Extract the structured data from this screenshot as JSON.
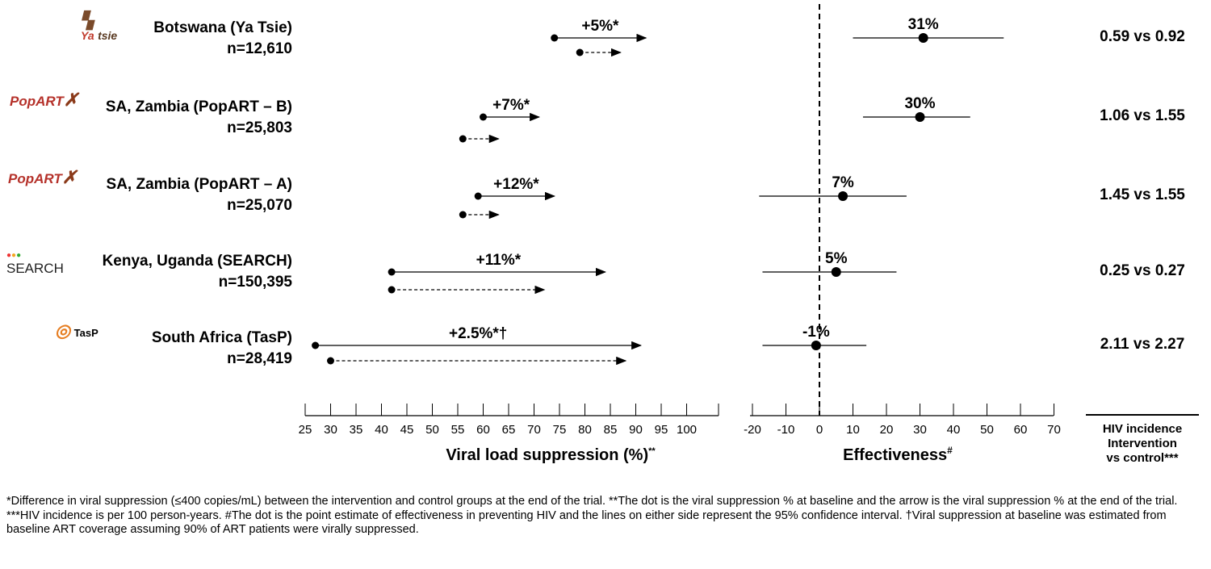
{
  "chart_data": {
    "type": "forest",
    "studies": [
      {
        "name": "Botswana (Ya Tsie)",
        "n": "n=12,610",
        "logo": "Ya tsie",
        "diff_label": "+5%*",
        "intervention": {
          "baseline": 74,
          "end": 92
        },
        "control": {
          "baseline": 79,
          "end": 87
        },
        "effectiveness": {
          "label": "31%",
          "point": 31,
          "ci": [
            10,
            55
          ]
        },
        "incidence": "0.59 vs 0.92"
      },
      {
        "name": "SA, Zambia (PopART – B)",
        "n": "n=25,803",
        "logo": "PopART",
        "diff_label": "+7%*",
        "intervention": {
          "baseline": 60,
          "end": 71
        },
        "control": {
          "baseline": 56,
          "end": 63
        },
        "effectiveness": {
          "label": "30%",
          "point": 30,
          "ci": [
            13,
            45
          ]
        },
        "incidence": "1.06 vs 1.55"
      },
      {
        "name": "SA, Zambia (PopART – A)",
        "n": "n=25,070",
        "logo": "PopART",
        "diff_label": "+12%*",
        "intervention": {
          "baseline": 59,
          "end": 74
        },
        "control": {
          "baseline": 56,
          "end": 63
        },
        "effectiveness": {
          "label": "7%",
          "point": 7,
          "ci": [
            -18,
            26
          ]
        },
        "incidence": "1.45 vs 1.55"
      },
      {
        "name": "Kenya, Uganda (SEARCH)",
        "n": "n=150,395",
        "logo": "SEARCH",
        "diff_label": "+11%*",
        "intervention": {
          "baseline": 42,
          "end": 84
        },
        "control": {
          "baseline": 42,
          "end": 72
        },
        "effectiveness": {
          "label": "5%",
          "point": 5,
          "ci": [
            -17,
            23
          ]
        },
        "incidence": "0.25 vs 0.27"
      },
      {
        "name": "South Africa (TasP)",
        "n": "n=28,419",
        "logo": "TasP",
        "diff_label": "+2.5%*†",
        "intervention": {
          "baseline": 27,
          "end": 91
        },
        "control": {
          "baseline": 30,
          "end": 88
        },
        "effectiveness": {
          "label": "-1%",
          "point": -1,
          "ci": [
            -17,
            14
          ]
        },
        "incidence": "2.11 vs 2.27"
      }
    ],
    "vl_axis": {
      "label": "Viral load suppression (%)",
      "label_sup": "**",
      "range": [
        25,
        105
      ],
      "ticks": [
        25,
        30,
        35,
        40,
        45,
        50,
        55,
        60,
        65,
        70,
        75,
        80,
        85,
        90,
        95,
        100
      ]
    },
    "eff_axis": {
      "label": "Effectiveness",
      "label_sup": "#",
      "range": [
        -20,
        70
      ],
      "ticks": [
        -20,
        -10,
        0,
        10,
        20,
        30,
        40,
        50,
        60,
        70
      ],
      "reference_line": 0
    },
    "incidence_header": [
      "HIV incidence",
      "Intervention",
      "vs control***"
    ]
  },
  "footnote": "*Difference in viral suppression (≤400 copies/mL) between the intervention  and control groups at the end of the trial. **The dot is the viral suppression % at baseline and the arrow is the viral suppression % at the end of the trial. ***HIV incidence is per 100 person-years. #The dot is the point estimate of effectiveness in preventing HIV and the lines on either side represent the 95% confidence interval.  †Viral suppression at baseline was estimated from baseline ART coverage assuming 90% of ART patients were virally suppressed."
}
